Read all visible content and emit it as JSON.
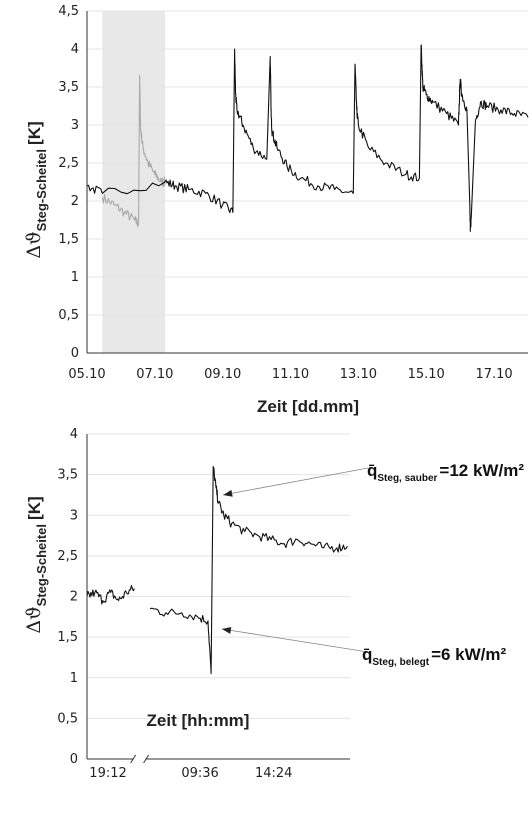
{
  "chart_data": [
    {
      "type": "line",
      "title": "",
      "xlabel": "Zeit [dd.mm]",
      "ylabel": {
        "symbol": "Δϑ",
        "subscript": "Steg-Scheitel",
        "unit": "[K]"
      },
      "ylim": [
        0,
        4.5
      ],
      "yticks": [
        "0",
        "0,5",
        "1",
        "1,5",
        "2",
        "2,5",
        "3",
        "3,5",
        "4",
        "4,5"
      ],
      "ytick_values": [
        0,
        0.5,
        1,
        1.5,
        2,
        2.5,
        3,
        3.5,
        4,
        4.5
      ],
      "xlim": [
        5.0,
        18.0
      ],
      "xticks": [
        "05.10",
        "07.10",
        "09.10",
        "11.10",
        "13.10",
        "15.10",
        "17.10"
      ],
      "xtick_values": [
        5,
        7,
        9,
        11,
        13,
        15,
        17
      ],
      "grid": true,
      "highlight_span": [
        5.45,
        7.3
      ],
      "series": [
        {
          "color": "#a8a8a8",
          "x": [
            5.45,
            5.8,
            6.1,
            6.4,
            6.52,
            6.55,
            6.58,
            6.65,
            6.8,
            7.0,
            7.2,
            7.3
          ],
          "y": [
            2.05,
            1.95,
            1.85,
            1.75,
            1.7,
            3.65,
            2.95,
            2.7,
            2.5,
            2.35,
            2.25,
            2.25
          ]
        },
        {
          "color": "#111111",
          "x": [
            5.0,
            5.45,
            7.3,
            7.6,
            8.0,
            8.5,
            9.0,
            9.3,
            9.35,
            9.38,
            9.42,
            9.6,
            9.9,
            10.3,
            10.4,
            10.43,
            10.46,
            10.6,
            10.9,
            11.3,
            11.8,
            12.3,
            12.85,
            12.9,
            12.95,
            13.0,
            13.3,
            13.8,
            14.4,
            14.8,
            14.85,
            14.9,
            15.0,
            15.2,
            15.6,
            15.95,
            16.0,
            16.05,
            16.2,
            16.28,
            16.3,
            16.33,
            16.45,
            16.6,
            16.8,
            17.2,
            17.6,
            18.0
          ],
          "y": [
            2.2,
            2.1,
            2.25,
            2.2,
            2.15,
            2.1,
            1.95,
            1.85,
            4.0,
            3.4,
            3.2,
            3.0,
            2.7,
            2.55,
            3.9,
            3.1,
            2.9,
            2.7,
            2.45,
            2.3,
            2.2,
            2.15,
            2.1,
            3.8,
            3.2,
            3.0,
            2.7,
            2.5,
            2.35,
            2.3,
            4.05,
            3.5,
            3.4,
            3.3,
            3.15,
            3.0,
            3.6,
            3.4,
            3.2,
            2.0,
            1.6,
            1.8,
            3.05,
            3.3,
            3.25,
            3.2,
            3.15,
            3.1
          ]
        }
      ]
    },
    {
      "type": "line",
      "title": "",
      "xlabel": "Zeit [hh:mm]",
      "ylabel": {
        "symbol": "Δϑ",
        "subscript": "Steg-Scheitel",
        "unit": "[K]"
      },
      "ylim": [
        0,
        4
      ],
      "yticks": [
        "0",
        "0,5",
        "1",
        "1,5",
        "2",
        "2,5",
        "3",
        "3,5",
        "4"
      ],
      "ytick_values": [
        0,
        0.5,
        1,
        1.5,
        2,
        2.5,
        3,
        3.5,
        4
      ],
      "xlim": [
        0,
        10
      ],
      "xticks": [
        "19:12",
        "09:36",
        "14:24"
      ],
      "xtick_values": [
        0.8,
        4.3,
        7.1
      ],
      "axis_break_at": 2.0,
      "grid": true,
      "series": [
        {
          "color": "#111111",
          "segments": [
            {
              "x": [
                0.0,
                0.3,
                0.6,
                0.9,
                1.2,
                1.5,
                1.8
              ],
              "y": [
                2.0,
                2.05,
                1.95,
                2.05,
                1.95,
                2.05,
                2.1
              ]
            },
            {
              "x": [
                2.4,
                3.0,
                3.6,
                4.2,
                4.6,
                4.72,
                4.8,
                4.9,
                5.0,
                5.2,
                5.5,
                6.0,
                6.5,
                7.0,
                7.5,
                8.0,
                8.5,
                9.0,
                9.5,
                9.9
              ],
              "y": [
                1.85,
                1.8,
                1.8,
                1.75,
                1.7,
                1.05,
                3.6,
                3.35,
                3.15,
                3.0,
                2.9,
                2.8,
                2.75,
                2.7,
                2.65,
                2.7,
                2.65,
                2.6,
                2.6,
                2.62
              ]
            }
          ]
        }
      ],
      "annotations": [
        {
          "main": "q̄",
          "sub": "Steg, sauber",
          "value": "=12 kW/m²",
          "x": 4.95,
          "y": 3.25
        },
        {
          "main": "q̄",
          "sub": "Steg, belegt",
          "value": "=6 kW/m²",
          "x": 4.9,
          "y": 1.6
        }
      ]
    }
  ]
}
